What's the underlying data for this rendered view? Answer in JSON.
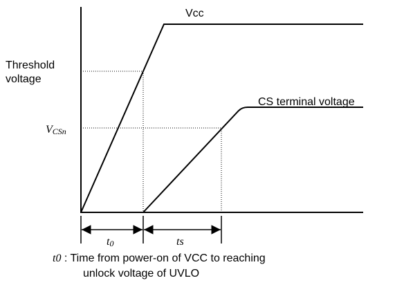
{
  "curves": {
    "vcc": {
      "label": "Vcc"
    },
    "cs": {
      "label": "CS terminal voltage"
    }
  },
  "levels": {
    "threshold": {
      "lines": [
        "Threshold",
        "voltage"
      ]
    },
    "vcsn": {
      "main": "V",
      "subscript": "CSn"
    }
  },
  "intervals": {
    "t0": {
      "main": "t",
      "subscript": "0"
    },
    "ts": {
      "label": "ts"
    }
  },
  "footnote": {
    "term": "t0",
    "line1": " : Time from power-on of VCC to reaching",
    "line2": "unlock voltage of UVLO"
  }
}
